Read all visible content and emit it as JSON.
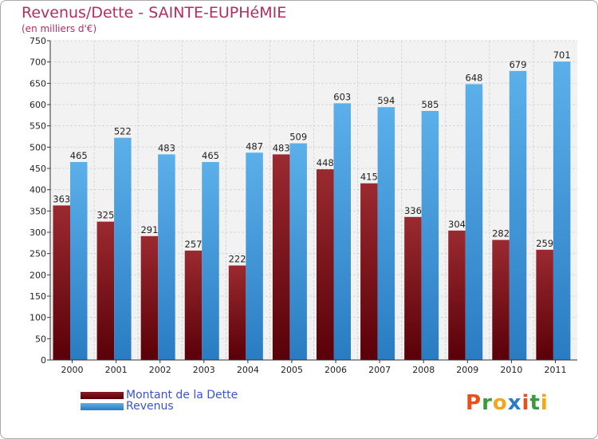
{
  "chart_data": {
    "type": "bar",
    "title": "Revenus/Dette - SAINTE-EUPHéMIE",
    "subtitle": "(en milliers d'€)",
    "categories": [
      "2000",
      "2001",
      "2002",
      "2003",
      "2004",
      "2005",
      "2006",
      "2007",
      "2008",
      "2009",
      "2010",
      "2011"
    ],
    "series": [
      {
        "name": "Montant de la Dette",
        "color": "#7a1015",
        "values": [
          363,
          325,
          291,
          257,
          222,
          483,
          448,
          415,
          336,
          304,
          282,
          259
        ]
      },
      {
        "name": "Revenus",
        "color": "#4aa0e0",
        "values": [
          465,
          522,
          483,
          465,
          487,
          509,
          603,
          594,
          585,
          648,
          679,
          701
        ]
      }
    ],
    "ylim": [
      0,
      750
    ],
    "ytick_step": 50,
    "grid": true,
    "legend": "bottom-left"
  },
  "logo": {
    "letters": [
      "P",
      "r",
      "o",
      "x",
      "i",
      "t",
      "i"
    ],
    "colors": [
      "#e8501b",
      "#3a9a3e",
      "#f2a61d",
      "#2f7ac8",
      "#e8501b",
      "#3a9a3e",
      "#f2a61d"
    ]
  }
}
